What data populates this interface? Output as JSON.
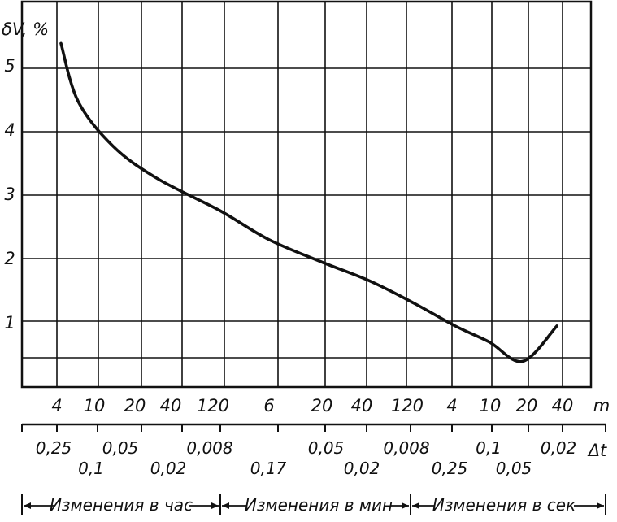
{
  "chart_data": {
    "type": "line",
    "title": "",
    "ylabel": "δV, %",
    "xlabel": "m",
    "xlabel2": "Δt",
    "ylim": [
      0,
      5.5
    ],
    "y_ticks": [
      "1",
      "2",
      "3",
      "4",
      "5"
    ],
    "grid": true,
    "x_ticks_top": [
      "4",
      "10",
      "20",
      "40",
      "120",
      "6",
      "20",
      "40",
      "120",
      "4",
      "10",
      "20",
      "40"
    ],
    "x_ticks_bottom_upper": [
      "0,25",
      "0,05",
      "0,008",
      "0,05",
      "0,008",
      "0,1",
      "0,02"
    ],
    "x_ticks_bottom_lower": [
      "0,1",
      "0,02",
      "0,17",
      "0,02",
      "0,25",
      "0,05"
    ],
    "ranges": [
      "Изменения в час",
      "Изменения в мин",
      "Изменения в сек"
    ],
    "series": [
      {
        "x": [
          "4",
          "10",
          "20",
          "40",
          "120",
          "6",
          "20",
          "40",
          "120",
          "4",
          "10",
          "20",
          "40"
        ],
        "values": [
          5.35,
          4.45,
          3.75,
          3.25,
          2.75,
          2.3,
          1.95,
          1.65,
          1.3,
          0.95,
          0.7,
          0.4,
          0.95
        ]
      }
    ]
  }
}
